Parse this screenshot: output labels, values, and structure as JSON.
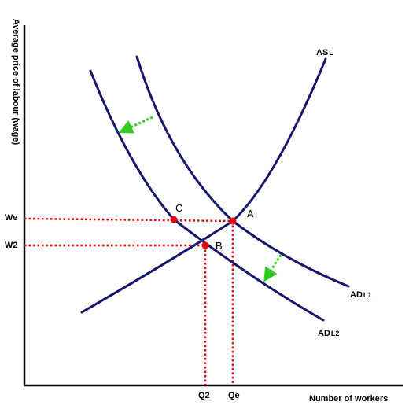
{
  "axes": {
    "y_label": "Average price of labour (wage)",
    "x_label": "Number of workers"
  },
  "curves": {
    "supply": {
      "main": "AS",
      "sub": "L"
    },
    "demand_1": {
      "main": "AD",
      "sub": "L1"
    },
    "demand_2": {
      "main": "AD",
      "sub": "L2"
    }
  },
  "wage_levels": {
    "equilibrium": "We",
    "new": "W2"
  },
  "quantity_levels": {
    "new": "Q2",
    "equilibrium": "Qe"
  },
  "points": {
    "a": "A",
    "b": "B",
    "c": "C"
  },
  "colors": {
    "curve": "#14176b",
    "guide": "#e8000b",
    "point": "#e8000b",
    "shift_arrow": "#2ecc1e",
    "axis": "#000000"
  }
}
